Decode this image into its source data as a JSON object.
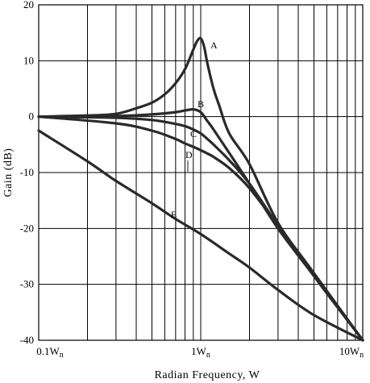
{
  "chart_data": {
    "type": "line",
    "title": "",
    "xlabel": "Radian Frequency, W",
    "ylabel": "Gain (dB)",
    "xscale": "log",
    "xlim": [
      0.1,
      10
    ],
    "ylim": [
      -40,
      20
    ],
    "grid": true,
    "x_ticks": [
      {
        "value": 0.1,
        "main": "0.1W",
        "sub": "n"
      },
      {
        "value": 1,
        "main": "1W",
        "sub": "n"
      },
      {
        "value": 10,
        "main": "10W",
        "sub": "n"
      }
    ],
    "y_ticks": [
      {
        "value": 20,
        "label": "20"
      },
      {
        "value": 10,
        "label": "10"
      },
      {
        "value": 0,
        "label": "0"
      },
      {
        "value": -10,
        "label": "-10"
      },
      {
        "value": -20,
        "label": "-20"
      },
      {
        "value": -30,
        "label": "-30"
      },
      {
        "value": -40,
        "label": "-40"
      }
    ],
    "series": [
      {
        "name": "A",
        "x": [
          0.1,
          0.2,
          0.3,
          0.4,
          0.5,
          0.6,
          0.7,
          0.8,
          0.9,
          0.95,
          1.0,
          1.05,
          1.1,
          1.2,
          1.3,
          1.5,
          2,
          3,
          5,
          10
        ],
        "y": [
          0,
          0.2,
          0.5,
          1.5,
          2.5,
          4,
          6,
          8.5,
          12,
          13.5,
          14,
          12.5,
          9.5,
          5,
          2,
          -3,
          -8.5,
          -19,
          -28,
          -40
        ]
      },
      {
        "name": "B",
        "x": [
          0.1,
          0.3,
          0.5,
          0.7,
          0.8,
          0.9,
          1.0,
          1.1,
          1.2,
          1.5,
          2,
          3,
          5,
          10
        ],
        "y": [
          0,
          0.1,
          0.4,
          0.8,
          1.1,
          1.3,
          0.8,
          -0.8,
          -2.3,
          -6.5,
          -12,
          -20,
          -28.5,
          -40
        ]
      },
      {
        "name": "C",
        "x": [
          0.1,
          0.3,
          0.5,
          0.7,
          0.8,
          0.9,
          1.0,
          1.1,
          1.2,
          1.5,
          2,
          3,
          5,
          10
        ],
        "y": [
          0,
          -0.2,
          -0.6,
          -1.3,
          -1.7,
          -2.3,
          -3.0,
          -4.0,
          -5.0,
          -7.8,
          -12,
          -19.5,
          -28.5,
          -40
        ]
      },
      {
        "name": "D",
        "x": [
          0.1,
          0.3,
          0.5,
          0.7,
          0.8,
          0.9,
          1.0,
          1.1,
          1.2,
          1.5,
          2,
          3,
          5,
          10
        ],
        "y": [
          0,
          -1.2,
          -2.5,
          -4.0,
          -4.8,
          -5.4,
          -6.0,
          -6.6,
          -7.2,
          -9.2,
          -12.8,
          -19.5,
          -28.5,
          -40
        ]
      },
      {
        "name": "E",
        "x": [
          0.1,
          0.2,
          0.3,
          0.5,
          0.7,
          1.0,
          1.5,
          2,
          3,
          5,
          10
        ],
        "y": [
          -2.5,
          -8,
          -11.5,
          -15.5,
          -18.3,
          -21,
          -24.5,
          -27,
          -31,
          -35.5,
          -40
        ]
      }
    ],
    "annotations": [
      {
        "text": "A",
        "series": "A"
      },
      {
        "text": "B",
        "series": "B"
      },
      {
        "text": "C",
        "series": "C"
      },
      {
        "text": "D",
        "series": "D"
      },
      {
        "text": "E",
        "series": "E"
      }
    ]
  }
}
